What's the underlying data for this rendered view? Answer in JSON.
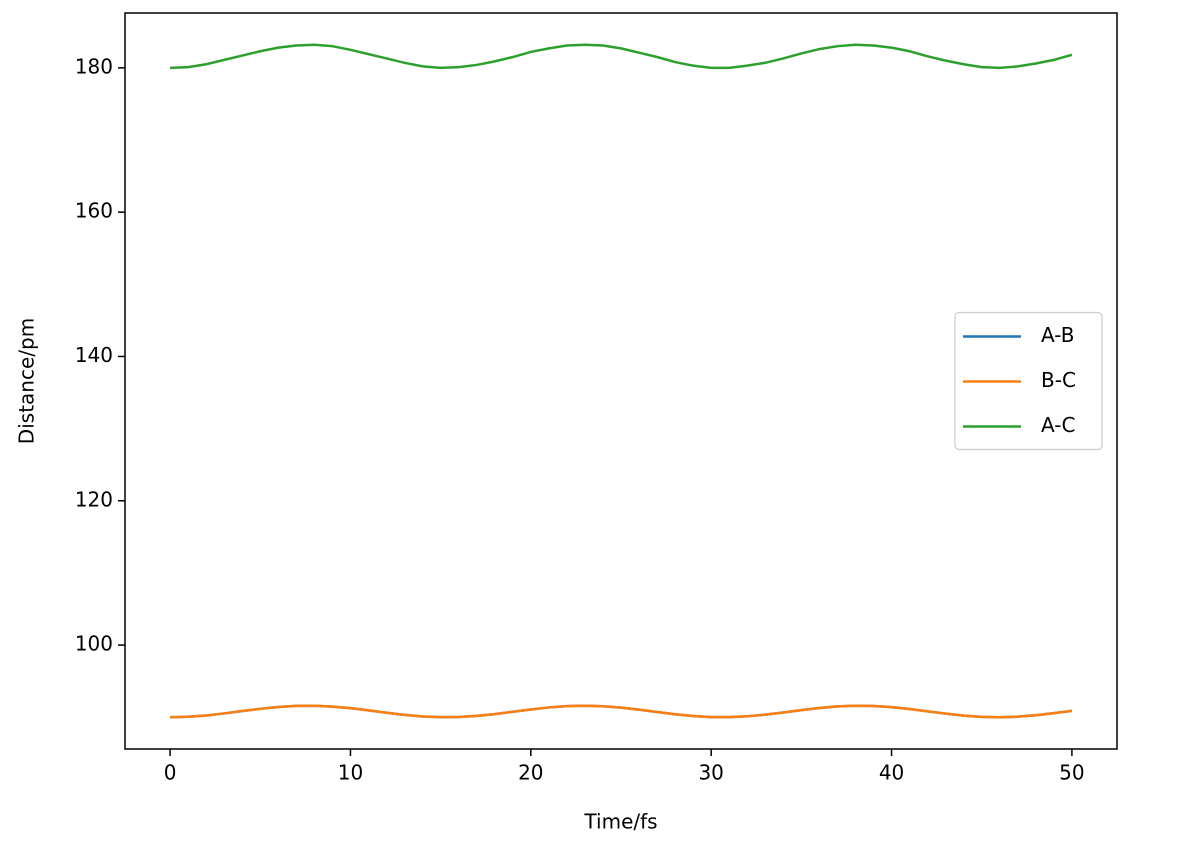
{
  "chart_data": {
    "type": "line",
    "xlabel": "Time/fs",
    "ylabel": "Distance/pm",
    "x": [
      0,
      1,
      2,
      3,
      4,
      5,
      6,
      7,
      8,
      9,
      10,
      11,
      12,
      13,
      14,
      15,
      16,
      17,
      18,
      19,
      20,
      21,
      22,
      23,
      24,
      25,
      26,
      27,
      28,
      29,
      30,
      31,
      32,
      33,
      34,
      35,
      36,
      37,
      38,
      39,
      40,
      41,
      42,
      43,
      44,
      45,
      46,
      47,
      48,
      49,
      50
    ],
    "series": [
      {
        "name": "A-B",
        "color": "#1f77b4",
        "values": [
          90.0,
          90.07,
          90.25,
          90.53,
          90.86,
          91.17,
          91.42,
          91.57,
          91.59,
          91.48,
          91.26,
          90.95,
          90.63,
          90.33,
          90.11,
          90.01,
          90.03,
          90.19,
          90.44,
          90.76,
          91.08,
          91.36,
          91.54,
          91.6,
          91.53,
          91.34,
          91.05,
          90.73,
          90.41,
          90.17,
          90.02,
          90.01,
          90.13,
          90.36,
          90.66,
          90.99,
          91.28,
          91.5,
          91.6,
          91.56,
          91.4,
          91.14,
          90.82,
          90.5,
          90.23,
          90.05,
          90.0,
          90.08,
          90.28,
          90.57,
          90.89
        ]
      },
      {
        "name": "B-C",
        "color": "#ff7f0e",
        "values": [
          90.0,
          90.07,
          90.25,
          90.53,
          90.86,
          91.17,
          91.42,
          91.57,
          91.59,
          91.48,
          91.26,
          90.95,
          90.63,
          90.33,
          90.11,
          90.01,
          90.03,
          90.19,
          90.44,
          90.76,
          91.08,
          91.36,
          91.54,
          91.6,
          91.53,
          91.34,
          91.05,
          90.73,
          90.41,
          90.17,
          90.02,
          90.01,
          90.13,
          90.36,
          90.66,
          90.99,
          91.28,
          91.5,
          91.6,
          91.56,
          91.4,
          91.14,
          90.82,
          90.5,
          90.23,
          90.05,
          90.0,
          90.08,
          90.28,
          90.57,
          90.89
        ]
      },
      {
        "name": "A-C",
        "color": "#2ca02c",
        "values": [
          180.0,
          180.1,
          180.5,
          181.1,
          181.7,
          182.3,
          182.8,
          183.1,
          183.2,
          183.0,
          182.5,
          181.9,
          181.3,
          180.7,
          180.2,
          180.0,
          180.1,
          180.4,
          180.9,
          181.5,
          182.2,
          182.7,
          183.1,
          183.2,
          183.1,
          182.7,
          182.1,
          181.5,
          180.8,
          180.3,
          180.0,
          180.0,
          180.3,
          180.7,
          181.3,
          182.0,
          182.6,
          183.0,
          183.2,
          183.1,
          182.8,
          182.3,
          181.6,
          181.0,
          180.5,
          180.1,
          180.0,
          180.2,
          180.6,
          181.1,
          181.8
        ]
      }
    ],
    "xlim": [
      -2.5,
      52.5
    ],
    "ylim": [
      85.6,
      187.6
    ],
    "xticks": [
      0,
      10,
      20,
      30,
      40,
      50
    ],
    "yticks": [
      100,
      120,
      140,
      160,
      180
    ],
    "legend": "center right"
  }
}
